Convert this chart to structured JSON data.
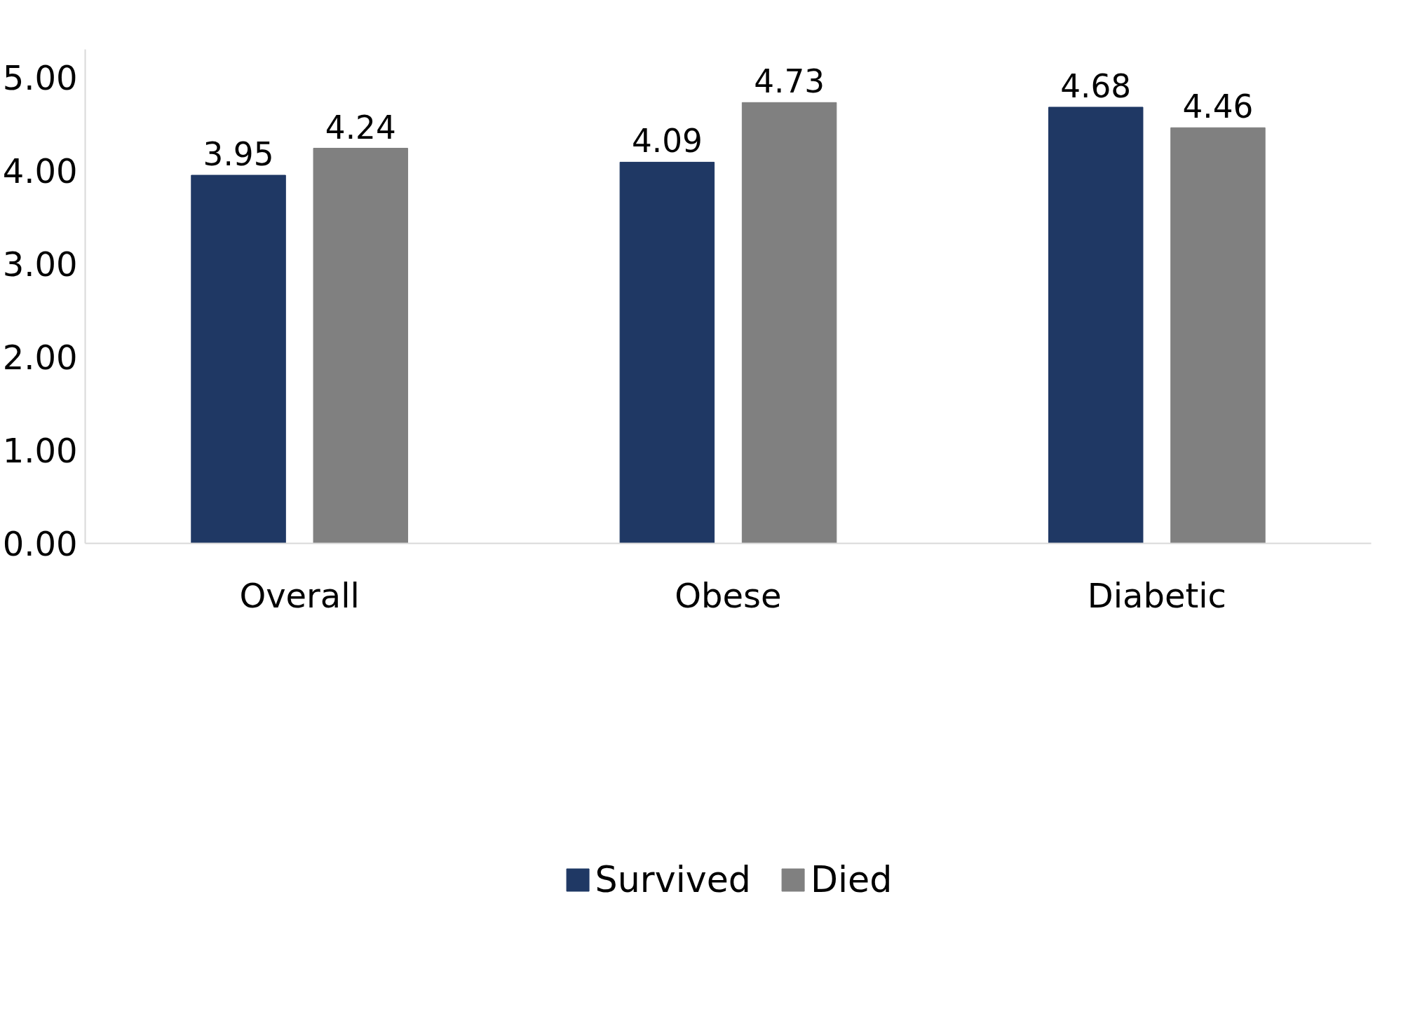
{
  "chart_data": {
    "type": "bar",
    "categories": [
      "Overall",
      "Obese",
      "Diabetic"
    ],
    "series": [
      {
        "name": "Survived",
        "color": "#1f3864",
        "values": [
          3.95,
          4.09,
          4.68
        ]
      },
      {
        "name": "Died",
        "color": "#808080",
        "values": [
          4.24,
          4.73,
          4.46
        ]
      }
    ],
    "ylim": [
      0,
      5.3
    ],
    "yticks": [
      {
        "value": 0,
        "label": "0.00"
      },
      {
        "value": 1,
        "label": "1.00"
      },
      {
        "value": 2,
        "label": "2.00"
      },
      {
        "value": 3,
        "label": "3.00"
      },
      {
        "value": 4,
        "label": "4.00"
      },
      {
        "value": 5,
        "label": "5.00"
      }
    ],
    "data_labels": true,
    "legend": "bottom",
    "grid": false
  }
}
